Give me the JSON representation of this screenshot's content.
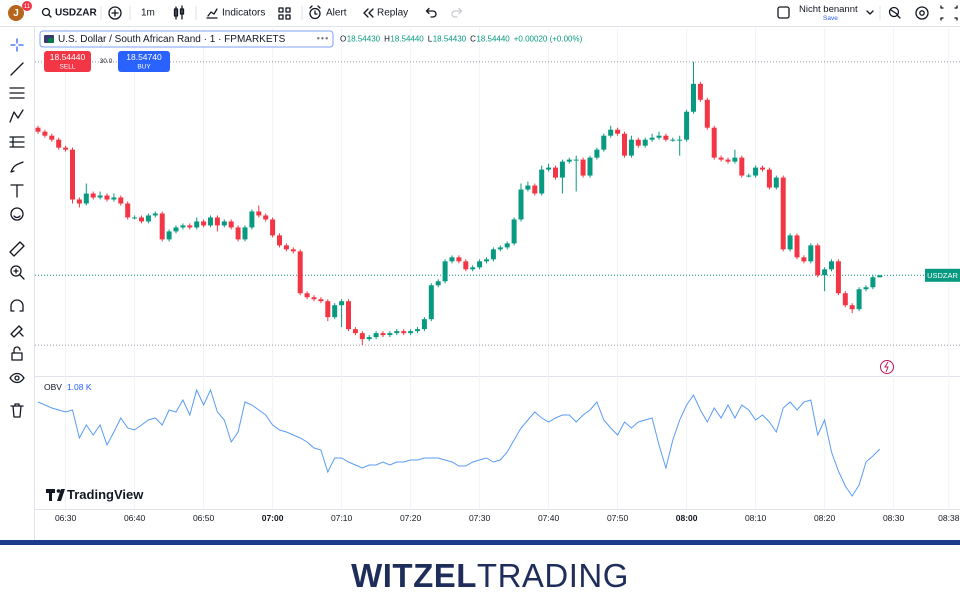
{
  "toolbar": {
    "avatar": "J",
    "badge": "11",
    "symbol": "USDZAR",
    "interval": "1m",
    "indicators": "Indicators",
    "alert": "Alert",
    "replay": "Replay",
    "layout_name": "Nicht benannt",
    "save": "Save"
  },
  "legend": {
    "title": "U.S. Dollar / South African Rand · 1 · FPMARKETS",
    "ohlc": [
      {
        "label": "O",
        "value": "18.54430"
      },
      {
        "label": "H",
        "value": "18.54440"
      },
      {
        "label": "L",
        "value": "18.54430"
      },
      {
        "label": "C",
        "value": "18.54440"
      }
    ],
    "change": "+0.00020 (+0.00%)"
  },
  "trade": {
    "sell_price": "18.54440",
    "sell": "SELL",
    "spread": "30.0",
    "buy_price": "18.54740",
    "buy": "BUY"
  },
  "watermark": "TradingView",
  "footer": {
    "brand_bold": "WITZEL",
    "brand_light": "TRADING"
  },
  "chart_data": [
    {
      "type": "candlestick",
      "price_label": "USDZAR",
      "up_color": "#089981",
      "down_color": "#f23645",
      "ylim": [
        18.5394,
        18.5568
      ],
      "grid": true,
      "xticks": [
        "06:30",
        "06:40",
        "06:50",
        "07:00",
        "07:10",
        "07:20",
        "07:30",
        "07:40",
        "07:50",
        "08:00",
        "08:10",
        "08:20",
        "08:30",
        "08:38"
      ],
      "x": [
        "06:26",
        "06:27",
        "06:28",
        "06:29",
        "06:30",
        "06:31",
        "06:32",
        "06:33",
        "06:34",
        "06:35",
        "06:36",
        "06:37",
        "06:38",
        "06:39",
        "06:40",
        "06:41",
        "06:42",
        "06:43",
        "06:44",
        "06:45",
        "06:46",
        "06:47",
        "06:48",
        "06:49",
        "06:50",
        "06:51",
        "06:52",
        "06:53",
        "06:54",
        "06:55",
        "06:56",
        "06:57",
        "06:58",
        "06:59",
        "07:00",
        "07:01",
        "07:02",
        "07:03",
        "07:04",
        "07:05",
        "07:06",
        "07:07",
        "07:08",
        "07:09",
        "07:10",
        "07:11",
        "07:12",
        "07:13",
        "07:14",
        "07:15",
        "07:16",
        "07:17",
        "07:18",
        "07:19",
        "07:20",
        "07:21",
        "07:22",
        "07:23",
        "07:24",
        "07:25",
        "07:26",
        "07:27",
        "07:28",
        "07:29",
        "07:30",
        "07:31",
        "07:32",
        "07:33",
        "07:34",
        "07:35",
        "07:36",
        "07:37",
        "07:38",
        "07:39",
        "07:40",
        "07:41",
        "07:42",
        "07:43",
        "07:44",
        "07:45",
        "07:46",
        "07:47",
        "07:48",
        "07:49",
        "07:50",
        "07:51",
        "07:52",
        "07:53",
        "07:54",
        "07:55",
        "07:56",
        "07:57",
        "07:58",
        "07:59",
        "08:00",
        "08:01",
        "08:02",
        "08:03",
        "08:04",
        "08:05",
        "08:06",
        "08:07",
        "08:08",
        "08:09",
        "08:10",
        "08:11",
        "08:12",
        "08:13",
        "08:14",
        "08:15",
        "08:16",
        "08:17",
        "08:18",
        "08:19",
        "08:20",
        "08:21",
        "08:22",
        "08:23",
        "08:24",
        "08:25",
        "08:26",
        "08:27",
        "08:28"
      ],
      "ohlc": [
        [
          18.5518,
          18.5519,
          18.5515,
          18.5516
        ],
        [
          18.5516,
          18.5517,
          18.5513,
          18.5514
        ],
        [
          18.5514,
          18.5515,
          18.5511,
          18.5512
        ],
        [
          18.5512,
          18.5513,
          18.5507,
          18.5508
        ],
        [
          18.5508,
          18.5509,
          18.5506,
          18.5507
        ],
        [
          18.5507,
          18.5508,
          18.548,
          18.5482
        ],
        [
          18.5482,
          18.5483,
          18.5478,
          18.548
        ],
        [
          18.548,
          18.549,
          18.5479,
          18.5485
        ],
        [
          18.5485,
          18.5486,
          18.5482,
          18.5483
        ],
        [
          18.5483,
          18.5486,
          18.5482,
          18.5484
        ],
        [
          18.5484,
          18.5485,
          18.5481,
          18.5482
        ],
        [
          18.5482,
          18.5485,
          18.5481,
          18.5483
        ],
        [
          18.5483,
          18.5484,
          18.5479,
          18.548
        ],
        [
          18.548,
          18.5481,
          18.5472,
          18.5473
        ],
        [
          18.5473,
          18.5474,
          18.5472,
          18.5473
        ],
        [
          18.5473,
          18.5474,
          18.547,
          18.5471
        ],
        [
          18.5471,
          18.5475,
          18.547,
          18.5474
        ],
        [
          18.5474,
          18.5476,
          18.5473,
          18.5475
        ],
        [
          18.5475,
          18.5476,
          18.5461,
          18.5462
        ],
        [
          18.5462,
          18.5467,
          18.5461,
          18.5466
        ],
        [
          18.5466,
          18.5469,
          18.5465,
          18.5468
        ],
        [
          18.5468,
          18.547,
          18.5467,
          18.5469
        ],
        [
          18.5469,
          18.547,
          18.5467,
          18.5468
        ],
        [
          18.5468,
          18.5473,
          18.5467,
          18.5471
        ],
        [
          18.5471,
          18.5472,
          18.5468,
          18.5469
        ],
        [
          18.5469,
          18.5474,
          18.5468,
          18.5473
        ],
        [
          18.5473,
          18.5474,
          18.5466,
          18.5469
        ],
        [
          18.5469,
          18.5472,
          18.5468,
          18.5471
        ],
        [
          18.5471,
          18.5472,
          18.5467,
          18.5468
        ],
        [
          18.5468,
          18.5469,
          18.5461,
          18.5462
        ],
        [
          18.5462,
          18.5469,
          18.5461,
          18.5468
        ],
        [
          18.5468,
          18.5477,
          18.5467,
          18.5476
        ],
        [
          18.5476,
          18.5479,
          18.5473,
          18.5474
        ],
        [
          18.5474,
          18.5475,
          18.5471,
          18.5472
        ],
        [
          18.5472,
          18.5473,
          18.5463,
          18.5464
        ],
        [
          18.5464,
          18.5465,
          18.5458,
          18.5459
        ],
        [
          18.5459,
          18.546,
          18.5456,
          18.5457
        ],
        [
          18.5457,
          18.5458,
          18.5455,
          18.5456
        ],
        [
          18.5456,
          18.5457,
          18.5434,
          18.5435
        ],
        [
          18.5435,
          18.5436,
          18.5432,
          18.5433
        ],
        [
          18.5433,
          18.5434,
          18.5431,
          18.5432
        ],
        [
          18.5432,
          18.5433,
          18.543,
          18.5431
        ],
        [
          18.5431,
          18.5432,
          18.5421,
          18.5423
        ],
        [
          18.5423,
          18.543,
          18.5422,
          18.5429
        ],
        [
          18.5429,
          18.5432,
          18.5418,
          18.5431
        ],
        [
          18.5431,
          18.5432,
          18.5416,
          18.5417
        ],
        [
          18.5417,
          18.5418,
          18.5414,
          18.5415
        ],
        [
          18.5415,
          18.5416,
          18.5409,
          18.5412
        ],
        [
          18.5412,
          18.5414,
          18.5411,
          18.5413
        ],
        [
          18.5413,
          18.5416,
          18.5412,
          18.5415
        ],
        [
          18.5415,
          18.5416,
          18.5413,
          18.5414
        ],
        [
          18.5414,
          18.5416,
          18.5413,
          18.5415
        ],
        [
          18.5415,
          18.5417,
          18.5414,
          18.5416
        ],
        [
          18.5416,
          18.5417,
          18.5414,
          18.5415
        ],
        [
          18.5415,
          18.5417,
          18.5414,
          18.5416
        ],
        [
          18.5416,
          18.5418,
          18.5415,
          18.5417
        ],
        [
          18.5417,
          18.5423,
          18.5416,
          18.5422
        ],
        [
          18.5422,
          18.544,
          18.5421,
          18.5439
        ],
        [
          18.5439,
          18.5442,
          18.5438,
          18.5441
        ],
        [
          18.5441,
          18.5452,
          18.544,
          18.5451
        ],
        [
          18.5451,
          18.5454,
          18.545,
          18.5453
        ],
        [
          18.5453,
          18.5454,
          18.545,
          18.5451
        ],
        [
          18.5451,
          18.5452,
          18.5446,
          18.5447
        ],
        [
          18.5447,
          18.5449,
          18.5446,
          18.5448
        ],
        [
          18.5448,
          18.5452,
          18.5447,
          18.5451
        ],
        [
          18.5451,
          18.5453,
          18.545,
          18.5452
        ],
        [
          18.5452,
          18.5458,
          18.5451,
          18.5457
        ],
        [
          18.5457,
          18.5459,
          18.5456,
          18.5458
        ],
        [
          18.5458,
          18.5461,
          18.5457,
          18.546
        ],
        [
          18.546,
          18.5473,
          18.5459,
          18.5472
        ],
        [
          18.5472,
          18.549,
          18.5471,
          18.5487
        ],
        [
          18.5487,
          18.5491,
          18.5486,
          18.5489
        ],
        [
          18.5489,
          18.549,
          18.5484,
          18.5485
        ],
        [
          18.5485,
          18.5499,
          18.5484,
          18.5497
        ],
        [
          18.5497,
          18.55,
          18.5496,
          18.5498
        ],
        [
          18.5498,
          18.5499,
          18.5492,
          18.5493
        ],
        [
          18.5493,
          18.5502,
          18.5485,
          18.5501
        ],
        [
          18.5501,
          18.5503,
          18.55,
          18.5502
        ],
        [
          18.5502,
          18.5504,
          18.5486,
          18.5502
        ],
        [
          18.5502,
          18.5503,
          18.5493,
          18.5494
        ],
        [
          18.5494,
          18.5504,
          18.5493,
          18.5503
        ],
        [
          18.5503,
          18.5508,
          18.5502,
          18.5507
        ],
        [
          18.5507,
          18.5515,
          18.5506,
          18.5514
        ],
        [
          18.5514,
          18.5519,
          18.5513,
          18.5517
        ],
        [
          18.5517,
          18.5518,
          18.5514,
          18.5515
        ],
        [
          18.5515,
          18.5516,
          18.5503,
          18.5504
        ],
        [
          18.5504,
          18.5514,
          18.5503,
          18.5512
        ],
        [
          18.5512,
          18.5513,
          18.5508,
          18.5509
        ],
        [
          18.5509,
          18.5513,
          18.5508,
          18.5512
        ],
        [
          18.5512,
          18.5515,
          18.5511,
          18.5513
        ],
        [
          18.5513,
          18.5516,
          18.5512,
          18.5514
        ],
        [
          18.5514,
          18.5515,
          18.5511,
          18.5512
        ],
        [
          18.5512,
          18.5513,
          18.5511,
          18.5512
        ],
        [
          18.5512,
          18.5514,
          18.5504,
          18.5512
        ],
        [
          18.5512,
          18.5527,
          18.5511,
          18.5526
        ],
        [
          18.5526,
          18.5551,
          18.5525,
          18.554
        ],
        [
          18.554,
          18.5541,
          18.5531,
          18.5532
        ],
        [
          18.5532,
          18.5533,
          18.5517,
          18.5518
        ],
        [
          18.5518,
          18.5519,
          18.5502,
          18.5503
        ],
        [
          18.5503,
          18.5504,
          18.5501,
          18.5502
        ],
        [
          18.5502,
          18.5503,
          18.55,
          18.5501
        ],
        [
          18.5501,
          18.5507,
          18.55,
          18.5503
        ],
        [
          18.5503,
          18.5504,
          18.5493,
          18.5494
        ],
        [
          18.5494,
          18.5495,
          18.5493,
          18.5494
        ],
        [
          18.5494,
          18.5499,
          18.5493,
          18.5498
        ],
        [
          18.5498,
          18.5499,
          18.5496,
          18.5497
        ],
        [
          18.5497,
          18.5498,
          18.5487,
          18.5488
        ],
        [
          18.5488,
          18.5494,
          18.5487,
          18.5493
        ],
        [
          18.5493,
          18.5494,
          18.5456,
          18.5457
        ],
        [
          18.5457,
          18.5465,
          18.5456,
          18.5464
        ],
        [
          18.5464,
          18.5465,
          18.5452,
          18.5453
        ],
        [
          18.5453,
          18.5454,
          18.545,
          18.5451
        ],
        [
          18.5451,
          18.546,
          18.545,
          18.5459
        ],
        [
          18.5459,
          18.546,
          18.5443,
          18.5444
        ],
        [
          18.5444,
          18.5448,
          18.5436,
          18.5447
        ],
        [
          18.5447,
          18.5452,
          18.5446,
          18.5451
        ],
        [
          18.5451,
          18.5452,
          18.5434,
          18.5435
        ],
        [
          18.5435,
          18.5436,
          18.5428,
          18.5429
        ],
        [
          18.5429,
          18.543,
          18.5425,
          18.5427
        ],
        [
          18.5427,
          18.5438,
          18.5426,
          18.5437
        ],
        [
          18.5437,
          18.5439,
          18.5436,
          18.5438
        ],
        [
          18.5438,
          18.5444,
          18.5437,
          18.5443
        ],
        [
          18.5443,
          18.5444,
          18.5443,
          18.5444
        ]
      ]
    },
    {
      "type": "line",
      "name": "OBV",
      "value_label": "1.08 K",
      "color": "#5b9cf6",
      "ylim": [
        450,
        1770
      ],
      "values": [
        1550,
        1520,
        1490,
        1470,
        1450,
        1470,
        1190,
        1320,
        1220,
        1320,
        1120,
        1250,
        1390,
        1290,
        1270,
        1320,
        1370,
        1390,
        1320,
        1470,
        1450,
        1570,
        1420,
        1670,
        1520,
        1670,
        1450,
        1370,
        1150,
        1250,
        1550,
        1520,
        1470,
        1420,
        1320,
        1270,
        1250,
        1220,
        1190,
        1150,
        1090,
        1070,
        850,
        990,
        990,
        950,
        920,
        890,
        920,
        920,
        950,
        920,
        950,
        950,
        970,
        970,
        990,
        990,
        990,
        970,
        950,
        910,
        910,
        950,
        970,
        990,
        950,
        970,
        1050,
        1170,
        1290,
        1370,
        1450,
        1390,
        1350,
        1390,
        1420,
        1420,
        1350,
        1420,
        1470,
        1550,
        1370,
        1290,
        1220,
        1350,
        1290,
        1350,
        1370,
        1390,
        1120,
        890,
        1170,
        1370,
        1520,
        1620,
        1470,
        1350,
        1490,
        1390,
        1520,
        1390,
        1520,
        1470,
        1370,
        1420,
        1350,
        1250,
        1490,
        1550,
        1470,
        1550,
        1570,
        1220,
        1370,
        1050,
        860,
        710,
        610,
        720,
        950,
        1010,
        1080
      ]
    }
  ]
}
